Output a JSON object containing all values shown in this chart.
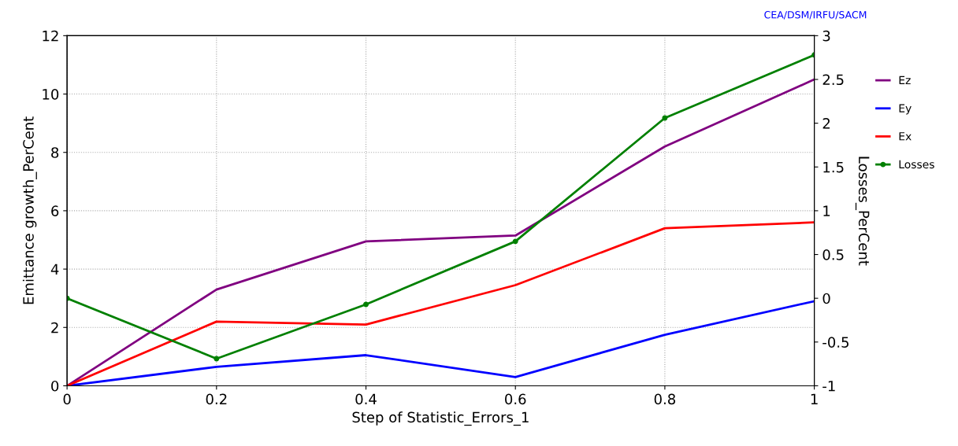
{
  "chart_data": {
    "type": "line",
    "xlabel": "Step of Statistic_Errors_1",
    "ylabel": "Emittance growth_PerCent",
    "y2label": "Losses_PerCent",
    "x": [
      0,
      0.2,
      0.4,
      0.6,
      0.8,
      1
    ],
    "series": [
      {
        "name": "Ez",
        "color": "#800080",
        "values": [
          0,
          3.3,
          4.95,
          5.15,
          8.2,
          10.5
        ]
      },
      {
        "name": "Ey",
        "color": "#0000ff",
        "values": [
          0,
          0.65,
          1.05,
          0.3,
          1.75,
          2.9
        ]
      },
      {
        "name": "Ex",
        "color": "#ff0000",
        "values": [
          0,
          2.2,
          2.1,
          3.45,
          5.4,
          5.6
        ]
      },
      {
        "name": "Losses",
        "color": "#008000",
        "axis": "y2",
        "marker": "circle",
        "values": [
          0,
          -0.69,
          -0.07,
          0.65,
          2.06,
          2.78
        ]
      }
    ],
    "xlim": [
      0,
      1
    ],
    "xticks": [
      0,
      0.2,
      0.4,
      0.6,
      0.8,
      1
    ],
    "ylim": [
      0,
      12
    ],
    "yticks": [
      0,
      2,
      4,
      6,
      8,
      10,
      12
    ],
    "y2lim": [
      -1,
      3
    ],
    "y2ticks": [
      -1,
      -0.5,
      0,
      0.5,
      1,
      1.5,
      2,
      2.5,
      3
    ],
    "grid": true,
    "legend": "right",
    "line_style": "solid",
    "annotations": [
      "CEA/DSM/IRFU/SACM"
    ]
  }
}
